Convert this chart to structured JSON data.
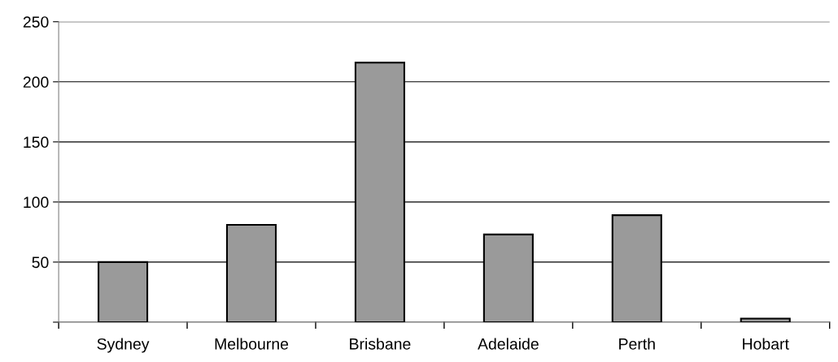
{
  "chart_data": {
    "type": "bar",
    "categories": [
      "Sydney",
      "Melbourne",
      "Brisbane",
      "Adelaide",
      "Perth",
      "Hobart"
    ],
    "values": [
      50,
      81,
      216,
      73,
      89,
      3
    ],
    "color": "#9a9a9a",
    "ylim": [
      0,
      250
    ],
    "yticks": [
      {
        "value": 0,
        "label": null
      },
      50,
      100,
      150,
      200,
      250
    ],
    "grid": "y"
  }
}
